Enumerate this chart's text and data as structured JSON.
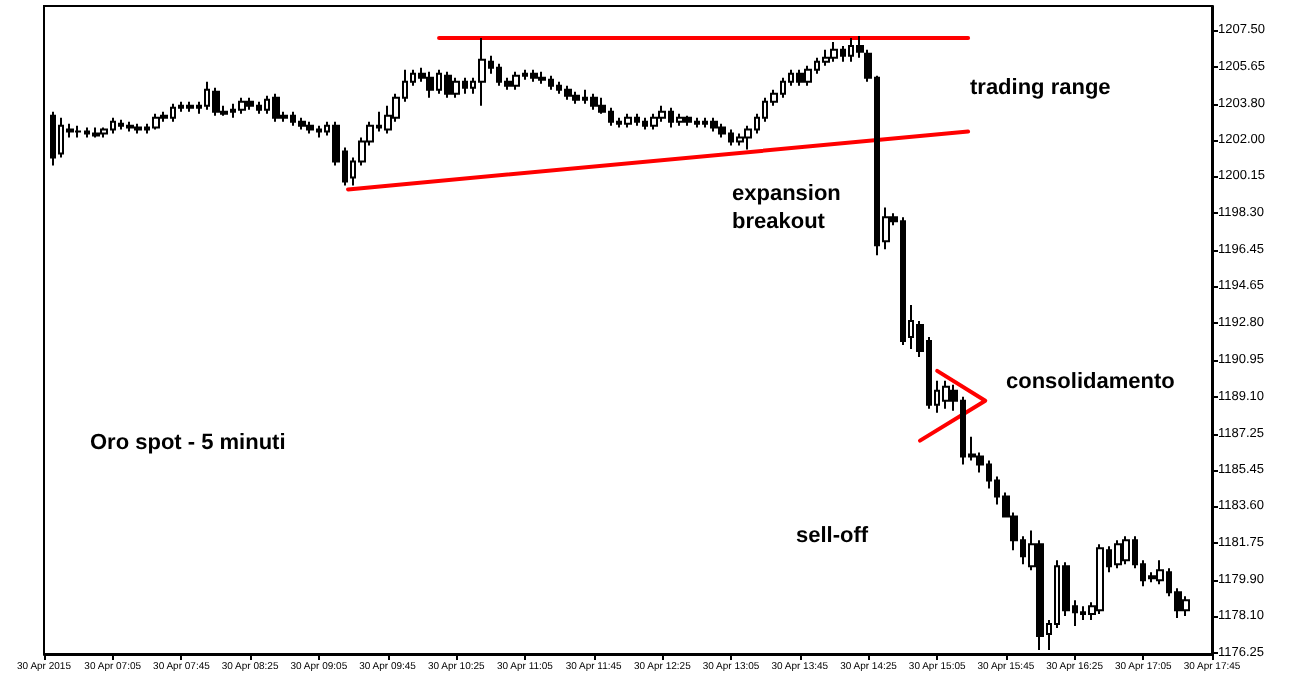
{
  "chart_data": {
    "type": "candlestick",
    "title": "Oro spot - 5 minuti",
    "x": [
      "2015-04-30T06:30",
      "2015-04-30T06:35",
      "2015-04-30T06:40",
      "2015-04-30T06:45",
      "2015-04-30T06:50",
      "2015-04-30T06:55",
      "2015-04-30T07:00",
      "2015-04-30T07:05",
      "2015-04-30T07:10",
      "2015-04-30T07:15",
      "2015-04-30T07:20",
      "2015-04-30T07:25",
      "2015-04-30T07:30",
      "2015-04-30T07:35",
      "2015-04-30T07:40",
      "2015-04-30T07:45",
      "2015-04-30T07:50",
      "2015-04-30T07:55",
      "2015-04-30T08:00",
      "2015-04-30T08:05",
      "2015-04-30T08:10",
      "2015-04-30T08:15",
      "2015-04-30T08:20",
      "2015-04-30T08:25",
      "2015-04-30T08:30",
      "2015-04-30T08:35",
      "2015-04-30T08:40",
      "2015-04-30T08:45",
      "2015-04-30T08:50",
      "2015-04-30T08:55",
      "2015-04-30T09:00",
      "2015-04-30T09:05",
      "2015-04-30T09:10",
      "2015-04-30T09:15",
      "2015-04-30T09:20",
      "2015-04-30T09:25",
      "2015-04-30T09:30",
      "2015-04-30T09:35",
      "2015-04-30T09:40",
      "2015-04-30T09:45",
      "2015-04-30T09:50",
      "2015-04-30T09:55",
      "2015-04-30T10:00",
      "2015-04-30T10:05",
      "2015-04-30T10:10",
      "2015-04-30T10:15",
      "2015-04-30T10:20",
      "2015-04-30T10:25",
      "2015-04-30T10:30",
      "2015-04-30T10:35",
      "2015-04-30T10:40",
      "2015-04-30T10:45",
      "2015-04-30T10:50",
      "2015-04-30T10:55",
      "2015-04-30T11:00",
      "2015-04-30T11:05",
      "2015-04-30T11:10",
      "2015-04-30T11:15",
      "2015-04-30T11:20",
      "2015-04-30T11:25",
      "2015-04-30T11:30",
      "2015-04-30T11:35",
      "2015-04-30T11:40",
      "2015-04-30T11:45",
      "2015-04-30T11:50",
      "2015-04-30T11:55",
      "2015-04-30T12:00",
      "2015-04-30T12:05",
      "2015-04-30T12:10",
      "2015-04-30T12:15",
      "2015-04-30T12:20",
      "2015-04-30T12:25",
      "2015-04-30T12:30",
      "2015-04-30T12:35",
      "2015-04-30T12:40",
      "2015-04-30T12:45",
      "2015-04-30T12:50",
      "2015-04-30T12:55",
      "2015-04-30T13:00",
      "2015-04-30T13:05",
      "2015-04-30T13:10",
      "2015-04-30T13:15",
      "2015-04-30T13:20",
      "2015-04-30T13:25",
      "2015-04-30T13:30",
      "2015-04-30T13:35",
      "2015-04-30T13:40",
      "2015-04-30T13:45",
      "2015-04-30T13:50",
      "2015-04-30T13:55",
      "2015-04-30T14:00",
      "2015-04-30T14:05",
      "2015-04-30T14:10",
      "2015-04-30T14:15",
      "2015-04-30T14:20",
      "2015-04-30T14:25",
      "2015-04-30T14:30",
      "2015-04-30T14:35",
      "2015-04-30T14:40",
      "2015-04-30T14:45",
      "2015-04-30T14:50",
      "2015-04-30T14:55",
      "2015-04-30T15:00",
      "2015-04-30T15:05",
      "2015-04-30T15:10",
      "2015-04-30T15:15",
      "2015-04-30T15:20",
      "2015-04-30T15:25",
      "2015-04-30T15:30",
      "2015-04-30T15:35",
      "2015-04-30T15:40",
      "2015-04-30T15:45",
      "2015-04-30T15:50",
      "2015-04-30T15:55",
      "2015-04-30T16:00",
      "2015-04-30T16:05",
      "2015-04-30T16:10",
      "2015-04-30T16:15",
      "2015-04-30T16:20",
      "2015-04-30T16:25",
      "2015-04-30T16:30",
      "2015-04-30T16:35",
      "2015-04-30T16:40",
      "2015-04-30T16:45",
      "2015-04-30T16:50",
      "2015-04-30T16:55",
      "2015-04-30T17:00",
      "2015-04-30T17:05",
      "2015-04-30T17:10",
      "2015-04-30T17:15",
      "2015-04-30T17:20",
      "2015-04-30T17:25",
      "2015-04-30T17:30"
    ],
    "ohlc": [
      [
        1203.2,
        1203.4,
        1200.7,
        1201.1
      ],
      [
        1201.3,
        1203.1,
        1201.1,
        1202.7
      ],
      [
        1202.5,
        1202.8,
        1202.1,
        1202.4
      ],
      [
        1202.4,
        1202.7,
        1202.1,
        1202.4
      ],
      [
        1202.4,
        1202.6,
        1202.1,
        1202.3
      ],
      [
        1202.3,
        1202.6,
        1202.1,
        1202.2
      ],
      [
        1202.3,
        1202.6,
        1202.1,
        1202.5
      ],
      [
        1202.5,
        1203.1,
        1202.3,
        1202.9
      ],
      [
        1202.8,
        1203.0,
        1202.5,
        1202.7
      ],
      [
        1202.7,
        1202.9,
        1202.4,
        1202.6
      ],
      [
        1202.6,
        1202.8,
        1202.3,
        1202.5
      ],
      [
        1202.5,
        1202.8,
        1202.3,
        1202.6
      ],
      [
        1202.6,
        1203.3,
        1202.5,
        1203.1
      ],
      [
        1203.1,
        1203.4,
        1202.9,
        1203.2
      ],
      [
        1203.1,
        1203.8,
        1202.9,
        1203.6
      ],
      [
        1203.6,
        1203.9,
        1203.4,
        1203.7
      ],
      [
        1203.7,
        1203.9,
        1203.4,
        1203.6
      ],
      [
        1203.6,
        1203.9,
        1203.3,
        1203.7
      ],
      [
        1203.7,
        1204.9,
        1203.5,
        1204.5
      ],
      [
        1204.4,
        1204.6,
        1203.2,
        1203.4
      ],
      [
        1203.4,
        1203.7,
        1203.2,
        1203.3
      ],
      [
        1203.4,
        1203.8,
        1203.1,
        1203.5
      ],
      [
        1203.5,
        1204.1,
        1203.3,
        1203.9
      ],
      [
        1203.9,
        1204.1,
        1203.5,
        1203.7
      ],
      [
        1203.7,
        1203.9,
        1203.3,
        1203.5
      ],
      [
        1203.5,
        1204.2,
        1203.3,
        1204.0
      ],
      [
        1204.1,
        1204.3,
        1202.9,
        1203.1
      ],
      [
        1203.1,
        1203.4,
        1202.9,
        1203.2
      ],
      [
        1203.2,
        1203.4,
        1202.7,
        1202.9
      ],
      [
        1202.9,
        1203.1,
        1202.5,
        1202.7
      ],
      [
        1202.7,
        1202.9,
        1202.3,
        1202.5
      ],
      [
        1202.5,
        1202.7,
        1202.1,
        1202.4
      ],
      [
        1202.4,
        1202.9,
        1202.2,
        1202.7
      ],
      [
        1202.7,
        1202.9,
        1200.7,
        1200.9
      ],
      [
        1201.4,
        1201.6,
        1199.7,
        1199.9
      ],
      [
        1200.1,
        1201.1,
        1199.7,
        1200.9
      ],
      [
        1200.9,
        1202.1,
        1200.7,
        1201.9
      ],
      [
        1201.9,
        1202.9,
        1201.7,
        1202.7
      ],
      [
        1202.7,
        1203.4,
        1202.4,
        1202.6
      ],
      [
        1202.5,
        1203.7,
        1202.3,
        1203.2
      ],
      [
        1203.1,
        1204.3,
        1202.9,
        1204.1
      ],
      [
        1204.1,
        1205.5,
        1203.9,
        1204.9
      ],
      [
        1204.9,
        1205.5,
        1204.7,
        1205.3
      ],
      [
        1205.3,
        1205.6,
        1204.9,
        1205.1
      ],
      [
        1205.1,
        1205.4,
        1204.1,
        1204.5
      ],
      [
        1204.5,
        1205.5,
        1204.3,
        1205.3
      ],
      [
        1205.2,
        1205.4,
        1204.1,
        1204.3
      ],
      [
        1204.3,
        1205.1,
        1204.1,
        1204.9
      ],
      [
        1204.9,
        1205.1,
        1204.3,
        1204.6
      ],
      [
        1204.6,
        1205.1,
        1204.3,
        1204.9
      ],
      [
        1204.9,
        1207.1,
        1203.7,
        1206.0
      ],
      [
        1205.9,
        1206.2,
        1205.3,
        1205.6
      ],
      [
        1205.6,
        1205.8,
        1204.7,
        1204.9
      ],
      [
        1204.9,
        1205.1,
        1204.5,
        1204.7
      ],
      [
        1204.7,
        1205.4,
        1204.5,
        1205.2
      ],
      [
        1205.2,
        1205.5,
        1205.0,
        1205.3
      ],
      [
        1205.3,
        1205.5,
        1204.9,
        1205.1
      ],
      [
        1205.1,
        1205.4,
        1204.8,
        1205.0
      ],
      [
        1205.0,
        1205.2,
        1204.5,
        1204.7
      ],
      [
        1204.7,
        1204.9,
        1204.3,
        1204.5
      ],
      [
        1204.5,
        1204.7,
        1204.0,
        1204.2
      ],
      [
        1204.2,
        1204.4,
        1203.8,
        1204.0
      ],
      [
        1204.0,
        1204.5,
        1203.8,
        1204.1
      ],
      [
        1204.1,
        1204.3,
        1203.5,
        1203.7
      ],
      [
        1203.7,
        1204.1,
        1203.3,
        1203.4
      ],
      [
        1203.4,
        1203.6,
        1202.7,
        1202.9
      ],
      [
        1202.9,
        1203.1,
        1202.6,
        1202.8
      ],
      [
        1202.8,
        1203.3,
        1202.6,
        1203.1
      ],
      [
        1203.1,
        1203.3,
        1202.7,
        1202.9
      ],
      [
        1202.9,
        1203.1,
        1202.5,
        1202.7
      ],
      [
        1202.7,
        1203.3,
        1202.5,
        1203.1
      ],
      [
        1203.1,
        1203.7,
        1202.9,
        1203.4
      ],
      [
        1203.4,
        1203.6,
        1202.6,
        1202.9
      ],
      [
        1202.9,
        1203.3,
        1202.7,
        1203.1
      ],
      [
        1203.1,
        1203.2,
        1202.7,
        1202.9
      ],
      [
        1202.9,
        1203.1,
        1202.6,
        1202.8
      ],
      [
        1202.8,
        1203.1,
        1202.6,
        1202.9
      ],
      [
        1202.9,
        1203.1,
        1202.4,
        1202.6
      ],
      [
        1202.6,
        1202.8,
        1202.1,
        1202.3
      ],
      [
        1202.3,
        1202.5,
        1201.7,
        1201.9
      ],
      [
        1201.9,
        1202.3,
        1201.7,
        1202.1
      ],
      [
        1202.1,
        1202.7,
        1201.5,
        1202.5
      ],
      [
        1202.5,
        1203.3,
        1202.3,
        1203.1
      ],
      [
        1203.1,
        1204.1,
        1202.9,
        1203.9
      ],
      [
        1203.9,
        1204.5,
        1203.7,
        1204.3
      ],
      [
        1204.3,
        1205.1,
        1204.1,
        1204.9
      ],
      [
        1204.9,
        1205.5,
        1204.7,
        1205.3
      ],
      [
        1205.3,
        1205.5,
        1204.7,
        1204.9
      ],
      [
        1204.9,
        1205.7,
        1204.7,
        1205.5
      ],
      [
        1205.5,
        1206.1,
        1205.3,
        1205.9
      ],
      [
        1205.9,
        1206.5,
        1205.7,
        1206.1
      ],
      [
        1206.1,
        1206.9,
        1205.9,
        1206.5
      ],
      [
        1206.5,
        1206.7,
        1205.9,
        1206.2
      ],
      [
        1206.2,
        1207.1,
        1205.9,
        1206.7
      ],
      [
        1206.7,
        1207.2,
        1206.1,
        1206.4
      ],
      [
        1206.3,
        1206.5,
        1204.9,
        1205.1
      ],
      [
        1205.1,
        1205.2,
        1196.2,
        1196.7
      ],
      [
        1196.9,
        1198.6,
        1196.5,
        1198.1
      ],
      [
        1198.1,
        1198.3,
        1197.7,
        1197.9
      ],
      [
        1197.9,
        1198.1,
        1191.7,
        1191.9
      ],
      [
        1192.1,
        1193.7,
        1191.5,
        1192.9
      ],
      [
        1192.7,
        1192.9,
        1191.1,
        1191.4
      ],
      [
        1191.9,
        1192.1,
        1188.5,
        1188.7
      ],
      [
        1188.7,
        1189.9,
        1188.3,
        1189.4
      ],
      [
        1188.9,
        1189.9,
        1188.5,
        1189.6
      ],
      [
        1189.4,
        1189.7,
        1188.4,
        1188.9
      ],
      [
        1188.9,
        1189.1,
        1185.7,
        1186.1
      ],
      [
        1186.1,
        1187.1,
        1185.9,
        1186.2
      ],
      [
        1186.1,
        1186.3,
        1185.3,
        1185.7
      ],
      [
        1185.7,
        1185.9,
        1184.5,
        1184.9
      ],
      [
        1184.9,
        1185.1,
        1183.7,
        1184.1
      ],
      [
        1184.1,
        1184.3,
        1183.1,
        1183.1
      ],
      [
        1183.1,
        1183.3,
        1181.4,
        1181.9
      ],
      [
        1181.9,
        1182.1,
        1180.7,
        1181.1
      ],
      [
        1180.6,
        1182.4,
        1180.4,
        1181.7
      ],
      [
        1181.7,
        1181.9,
        1176.4,
        1177.1
      ],
      [
        1177.2,
        1177.9,
        1176.4,
        1177.7
      ],
      [
        1177.7,
        1180.9,
        1177.5,
        1180.6
      ],
      [
        1180.6,
        1180.8,
        1178.1,
        1178.4
      ],
      [
        1178.6,
        1178.9,
        1177.6,
        1178.3
      ],
      [
        1178.3,
        1178.6,
        1177.9,
        1178.2
      ],
      [
        1178.2,
        1178.8,
        1177.9,
        1178.6
      ],
      [
        1178.4,
        1181.7,
        1178.2,
        1181.5
      ],
      [
        1181.4,
        1181.6,
        1180.3,
        1180.6
      ],
      [
        1180.7,
        1181.9,
        1180.5,
        1181.7
      ],
      [
        1180.9,
        1182.1,
        1180.7,
        1181.9
      ],
      [
        1181.9,
        1182.1,
        1180.5,
        1180.7
      ],
      [
        1180.7,
        1180.9,
        1179.6,
        1179.9
      ],
      [
        1180.1,
        1180.3,
        1179.8,
        1180.0
      ],
      [
        1179.9,
        1180.9,
        1179.7,
        1180.4
      ],
      [
        1180.3,
        1180.5,
        1179.1,
        1179.3
      ],
      [
        1179.3,
        1179.5,
        1178.0,
        1178.4
      ],
      [
        1178.4,
        1179.1,
        1178.1,
        1178.9
      ]
    ],
    "series": [
      {
        "type": "line",
        "color": "#ff0000",
        "x": [
          "2015-04-30T10:15",
          "2015-04-30T15:23"
        ],
        "values": [
          1207.1,
          1207.1
        ]
      },
      {
        "type": "line",
        "color": "#ff0000",
        "x": [
          "2015-04-30T09:22",
          "2015-04-30T15:23"
        ],
        "values": [
          1199.5,
          1202.4
        ]
      },
      {
        "type": "line",
        "color": "#ff0000",
        "x": [
          "2015-04-30T15:05",
          "2015-04-30T15:33",
          "2015-04-30T14:55"
        ],
        "values": [
          1190.4,
          1188.9,
          1186.9
        ]
      }
    ],
    "annotations": [
      "trading range",
      "expansion\nbreakout",
      "consolidamento",
      "sell-off"
    ],
    "xlim": [
      "2015-04-30T06:25",
      "2015-04-30T17:45"
    ],
    "xticks": [
      {
        "value": "2015-04-30T06:25",
        "label": "30 Apr 2015"
      },
      {
        "value": "2015-04-30T07:05",
        "label": "30 Apr 07:05"
      },
      {
        "value": "2015-04-30T07:45",
        "label": "30 Apr 07:45"
      },
      {
        "value": "2015-04-30T08:25",
        "label": "30 Apr 08:25"
      },
      {
        "value": "2015-04-30T09:05",
        "label": "30 Apr 09:05"
      },
      {
        "value": "2015-04-30T09:45",
        "label": "30 Apr 09:45"
      },
      {
        "value": "2015-04-30T10:25",
        "label": "30 Apr 10:25"
      },
      {
        "value": "2015-04-30T11:05",
        "label": "30 Apr 11:05"
      },
      {
        "value": "2015-04-30T11:45",
        "label": "30 Apr 11:45"
      },
      {
        "value": "2015-04-30T12:25",
        "label": "30 Apr 12:25"
      },
      {
        "value": "2015-04-30T13:05",
        "label": "30 Apr 13:05"
      },
      {
        "value": "2015-04-30T13:45",
        "label": "30 Apr 13:45"
      },
      {
        "value": "2015-04-30T14:25",
        "label": "30 Apr 14:25"
      },
      {
        "value": "2015-04-30T15:05",
        "label": "30 Apr 15:05"
      },
      {
        "value": "2015-04-30T15:45",
        "label": "30 Apr 15:45"
      },
      {
        "value": "2015-04-30T16:25",
        "label": "30 Apr 16:25"
      },
      {
        "value": "2015-04-30T17:05",
        "label": "30 Apr 17:05"
      },
      {
        "value": "2015-04-30T17:45",
        "label": "30 Apr 17:45"
      }
    ],
    "ylim": [
      1176.2,
      1208.7
    ],
    "yticks": [
      {
        "value": 1207.5,
        "label": "1207.50"
      },
      {
        "value": 1205.65,
        "label": "1205.65"
      },
      {
        "value": 1203.8,
        "label": "1203.80"
      },
      {
        "value": 1202.0,
        "label": "1202.00"
      },
      {
        "value": 1200.15,
        "label": "1200.15"
      },
      {
        "value": 1198.3,
        "label": "1198.30"
      },
      {
        "value": 1196.45,
        "label": "1196.45"
      },
      {
        "value": 1194.65,
        "label": "1194.65"
      },
      {
        "value": 1192.8,
        "label": "1192.80"
      },
      {
        "value": 1190.95,
        "label": "1190.95"
      },
      {
        "value": 1189.1,
        "label": "1189.10"
      },
      {
        "value": 1187.25,
        "label": "1187.25"
      },
      {
        "value": 1185.45,
        "label": "1185.45"
      },
      {
        "value": 1183.6,
        "label": "1183.60"
      },
      {
        "value": 1181.75,
        "label": "1181.75"
      },
      {
        "value": 1179.9,
        "label": "1179.90"
      },
      {
        "value": 1178.1,
        "label": "1178.10"
      },
      {
        "value": 1176.25,
        "label": "1176.25"
      }
    ],
    "grid": false
  }
}
